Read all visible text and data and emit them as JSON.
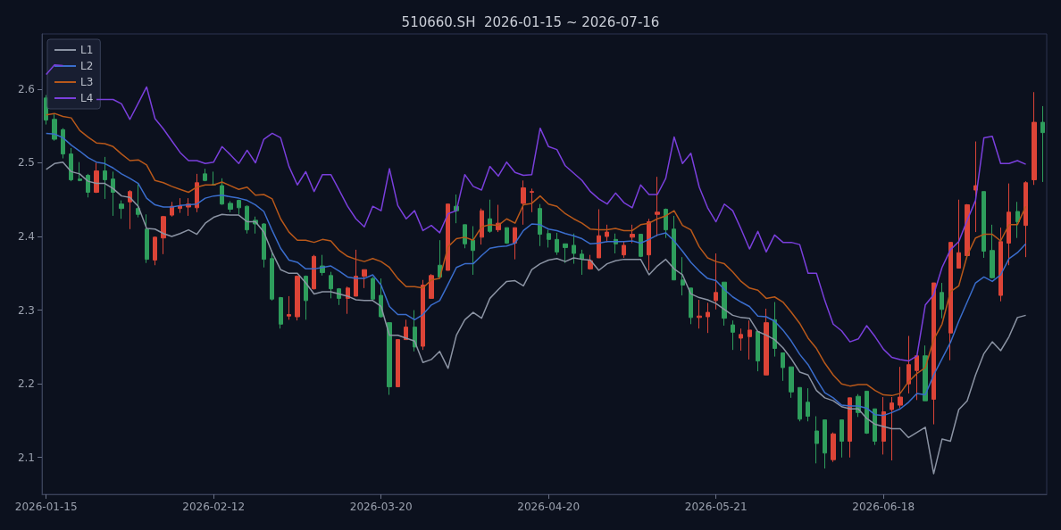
{
  "chart_data": {
    "type": "candlestick",
    "title": "510660.SH  2026-01-15 ~ 2026-07-16",
    "categories": [
      "2026-01-15",
      null,
      null,
      null,
      null,
      null,
      null,
      null,
      null,
      null,
      null,
      null,
      null,
      null,
      null,
      null,
      null,
      null,
      null,
      null,
      "2026-02-12",
      null,
      null,
      null,
      null,
      null,
      null,
      null,
      null,
      null,
      null,
      null,
      null,
      null,
      null,
      null,
      null,
      null,
      null,
      null,
      "2026-03-20",
      null,
      null,
      null,
      null,
      null,
      null,
      null,
      null,
      null,
      null,
      null,
      null,
      null,
      null,
      null,
      null,
      null,
      null,
      null,
      "2026-04-20",
      null,
      null,
      null,
      null,
      null,
      null,
      null,
      null,
      null,
      null,
      null,
      null,
      null,
      null,
      null,
      null,
      null,
      null,
      null,
      "2026-05-21",
      null,
      null,
      null,
      null,
      null,
      null,
      null,
      null,
      null,
      null,
      null,
      null,
      null,
      null,
      null,
      null,
      null,
      null,
      null,
      "2026-06-18",
      null,
      null,
      null,
      null,
      null,
      null,
      null,
      null,
      null,
      null,
      null,
      null,
      null,
      null,
      null,
      null,
      null,
      null,
      null
    ],
    "ohlc": [
      [
        2.588,
        2.592,
        2.552,
        2.558
      ],
      [
        2.559,
        2.567,
        2.53,
        2.532
      ],
      [
        2.545,
        2.547,
        2.506,
        2.512
      ],
      [
        2.512,
        2.52,
        2.475,
        2.477
      ],
      [
        2.478,
        2.501,
        2.475,
        2.476
      ],
      [
        2.483,
        2.485,
        2.453,
        2.46
      ],
      [
        2.46,
        2.5,
        2.459,
        2.489
      ],
      [
        2.489,
        2.508,
        2.451,
        2.477
      ],
      [
        2.478,
        2.488,
        2.428,
        2.46
      ],
      [
        2.444,
        2.449,
        2.424,
        2.438
      ],
      [
        2.447,
        2.463,
        2.41,
        2.461
      ],
      [
        2.438,
        2.471,
        2.426,
        2.43
      ],
      [
        2.41,
        2.43,
        2.364,
        2.369
      ],
      [
        2.368,
        2.4,
        2.361,
        2.399
      ],
      [
        2.398,
        2.428,
        2.376,
        2.427
      ],
      [
        2.429,
        2.447,
        2.427,
        2.441
      ],
      [
        2.438,
        2.452,
        2.432,
        2.442
      ],
      [
        2.44,
        2.452,
        2.428,
        2.444
      ],
      [
        2.439,
        2.485,
        2.433,
        2.473
      ],
      [
        2.485,
        2.492,
        2.475,
        2.476
      ],
      [
        2.471,
        2.488,
        2.469,
        2.47
      ],
      [
        2.469,
        2.479,
        2.443,
        2.444
      ],
      [
        2.445,
        2.448,
        2.433,
        2.437
      ],
      [
        2.449,
        2.45,
        2.43,
        2.439
      ],
      [
        2.441,
        2.442,
        2.404,
        2.409
      ],
      [
        2.422,
        2.427,
        2.404,
        2.417
      ],
      [
        2.417,
        2.418,
        2.358,
        2.369
      ],
      [
        2.37,
        2.381,
        2.313,
        2.315
      ],
      [
        2.317,
        2.318,
        2.275,
        2.281
      ],
      [
        2.292,
        2.319,
        2.287,
        2.294
      ],
      [
        2.291,
        2.347,
        2.286,
        2.346
      ],
      [
        2.346,
        2.347,
        2.287,
        2.313
      ],
      [
        2.329,
        2.375,
        2.328,
        2.373
      ],
      [
        2.36,
        2.375,
        2.347,
        2.351
      ],
      [
        2.347,
        2.352,
        2.316,
        2.329
      ],
      [
        2.329,
        2.33,
        2.307,
        2.316
      ],
      [
        2.316,
        2.332,
        2.295,
        2.33
      ],
      [
        2.319,
        2.382,
        2.319,
        2.346
      ],
      [
        2.346,
        2.355,
        2.33,
        2.355
      ],
      [
        2.343,
        2.345,
        2.313,
        2.315
      ],
      [
        2.32,
        2.343,
        2.29,
        2.291
      ],
      [
        2.283,
        2.283,
        2.185,
        2.196
      ],
      [
        2.196,
        2.26,
        2.196,
        2.26
      ],
      [
        2.26,
        2.287,
        2.26,
        2.277
      ],
      [
        2.277,
        2.3,
        2.244,
        2.25
      ],
      [
        2.251,
        2.341,
        2.246,
        2.334
      ],
      [
        2.316,
        2.349,
        2.316,
        2.347
      ],
      [
        2.361,
        2.395,
        2.345,
        2.345
      ],
      [
        2.354,
        2.444,
        2.354,
        2.444
      ],
      [
        2.441,
        2.457,
        2.418,
        2.435
      ],
      [
        2.416,
        2.416,
        2.384,
        2.39
      ],
      [
        2.395,
        2.414,
        2.348,
        2.381
      ],
      [
        2.399,
        2.438,
        2.389,
        2.435
      ],
      [
        2.424,
        2.45,
        2.405,
        2.407
      ],
      [
        2.409,
        2.443,
        2.406,
        2.418
      ],
      [
        2.412,
        2.412,
        2.39,
        2.391
      ],
      [
        2.391,
        2.412,
        2.369,
        2.412
      ],
      [
        2.445,
        2.476,
        2.416,
        2.466
      ],
      [
        2.46,
        2.465,
        2.433,
        2.461
      ],
      [
        2.438,
        2.444,
        2.387,
        2.403
      ],
      [
        2.404,
        2.409,
        2.385,
        2.396
      ],
      [
        2.396,
        2.405,
        2.375,
        2.379
      ],
      [
        2.39,
        2.39,
        2.364,
        2.385
      ],
      [
        2.388,
        2.404,
        2.363,
        2.377
      ],
      [
        2.376,
        2.382,
        2.348,
        2.369
      ],
      [
        2.356,
        2.375,
        2.355,
        2.367
      ],
      [
        2.371,
        2.437,
        2.371,
        2.401
      ],
      [
        2.4,
        2.416,
        2.392,
        2.406
      ],
      [
        2.396,
        2.404,
        2.377,
        2.39
      ],
      [
        2.375,
        2.393,
        2.371,
        2.388
      ],
      [
        2.399,
        2.416,
        2.391,
        2.403
      ],
      [
        2.403,
        2.403,
        2.372,
        2.373
      ],
      [
        2.375,
        2.424,
        2.354,
        2.42
      ],
      [
        2.43,
        2.481,
        2.4,
        2.433
      ],
      [
        2.437,
        2.438,
        2.398,
        2.409
      ],
      [
        2.41,
        2.428,
        2.341,
        2.341
      ],
      [
        2.341,
        2.372,
        2.32,
        2.334
      ],
      [
        2.33,
        2.33,
        2.281,
        2.29
      ],
      [
        2.29,
        2.314,
        2.275,
        2.292
      ],
      [
        2.291,
        2.31,
        2.269,
        2.297
      ],
      [
        2.313,
        2.377,
        2.301,
        2.324
      ],
      [
        2.338,
        2.338,
        2.279,
        2.289
      ],
      [
        2.28,
        2.286,
        2.246,
        2.27
      ],
      [
        2.262,
        2.275,
        2.245,
        2.267
      ],
      [
        2.264,
        2.286,
        2.233,
        2.273
      ],
      [
        2.271,
        2.271,
        2.217,
        2.231
      ],
      [
        2.212,
        2.302,
        2.212,
        2.283
      ],
      [
        2.287,
        2.311,
        2.237,
        2.248
      ],
      [
        2.242,
        2.242,
        2.204,
        2.222
      ],
      [
        2.223,
        2.223,
        2.181,
        2.189
      ],
      [
        2.195,
        2.195,
        2.149,
        2.152
      ],
      [
        2.175,
        2.194,
        2.149,
        2.156
      ],
      [
        2.136,
        2.156,
        2.092,
        2.119
      ],
      [
        2.151,
        2.151,
        2.085,
        2.106
      ],
      [
        2.097,
        2.134,
        2.094,
        2.132
      ],
      [
        2.151,
        2.151,
        2.1,
        2.122
      ],
      [
        2.122,
        2.181,
        2.1,
        2.181
      ],
      [
        2.183,
        2.186,
        2.155,
        2.161
      ],
      [
        2.19,
        2.19,
        2.132,
        2.133
      ],
      [
        2.166,
        2.166,
        2.117,
        2.122
      ],
      [
        2.122,
        2.182,
        2.104,
        2.162
      ],
      [
        2.165,
        2.182,
        2.096,
        2.174
      ],
      [
        2.171,
        2.223,
        2.167,
        2.182
      ],
      [
        2.2,
        2.265,
        2.187,
        2.226
      ],
      [
        2.218,
        2.238,
        2.178,
        2.238
      ],
      [
        2.238,
        2.252,
        2.177,
        2.177
      ],
      [
        2.179,
        2.337,
        2.145,
        2.337
      ],
      [
        2.324,
        2.337,
        2.289,
        2.301
      ],
      [
        2.269,
        2.392,
        2.232,
        2.392
      ],
      [
        2.357,
        2.45,
        2.357,
        2.378
      ],
      [
        2.374,
        2.444,
        2.374,
        2.443
      ],
      [
        2.463,
        2.529,
        2.406,
        2.469
      ],
      [
        2.461,
        2.461,
        2.371,
        2.38
      ],
      [
        2.381,
        2.416,
        2.343,
        2.344
      ],
      [
        2.32,
        2.412,
        2.312,
        2.393
      ],
      [
        2.391,
        2.472,
        2.361,
        2.433
      ],
      [
        2.434,
        2.447,
        2.398,
        2.42
      ],
      [
        2.415,
        2.475,
        2.372,
        2.473
      ],
      [
        2.477,
        2.596,
        2.47,
        2.555
      ],
      [
        2.555,
        2.577,
        2.474,
        2.541
      ]
    ],
    "colors": [
      "#2e9d5c",
      "#2e9d5c",
      "#2e9d5c",
      "#2e9d5c",
      "#2e9d5c",
      "#2e9d5c",
      "#dc4437",
      "#2e9d5c",
      "#2e9d5c",
      "#2e9d5c",
      "#dc4437",
      "#2e9d5c",
      "#2e9d5c",
      "#dc4437",
      "#dc4437",
      "#dc4437",
      "#dc4437",
      "#dc4437",
      "#dc4437",
      "#2e9d5c",
      "#2e9d5c",
      "#2e9d5c",
      "#2e9d5c",
      "#2e9d5c",
      "#2e9d5c",
      "#2e9d5c",
      "#2e9d5c",
      "#2e9d5c",
      "#2e9d5c",
      "#dc4437",
      "#dc4437",
      "#2e9d5c",
      "#dc4437",
      "#2e9d5c",
      "#2e9d5c",
      "#2e9d5c",
      "#dc4437",
      "#dc4437",
      "#dc4437",
      "#2e9d5c",
      "#2e9d5c",
      "#2e9d5c",
      "#dc4437",
      "#dc4437",
      "#2e9d5c",
      "#dc4437",
      "#dc4437",
      "#2e9d5c",
      "#dc4437",
      "#2e9d5c",
      "#2e9d5c",
      "#2e9d5c",
      "#dc4437",
      "#2e9d5c",
      "#dc4437",
      "#2e9d5c",
      "#dc4437",
      "#dc4437",
      "#dc4437",
      "#2e9d5c",
      "#2e9d5c",
      "#2e9d5c",
      "#2e9d5c",
      "#2e9d5c",
      "#2e9d5c",
      "#dc4437",
      "#dc4437",
      "#dc4437",
      "#2e9d5c",
      "#dc4437",
      "#dc4437",
      "#2e9d5c",
      "#dc4437",
      "#dc4437",
      "#2e9d5c",
      "#2e9d5c",
      "#2e9d5c",
      "#2e9d5c",
      "#dc4437",
      "#dc4437",
      "#dc4437",
      "#2e9d5c",
      "#2e9d5c",
      "#dc4437",
      "#dc4437",
      "#2e9d5c",
      "#dc4437",
      "#2e9d5c",
      "#2e9d5c",
      "#2e9d5c",
      "#2e9d5c",
      "#2e9d5c",
      "#2e9d5c",
      "#2e9d5c",
      "#dc4437",
      "#2e9d5c",
      "#dc4437",
      "#2e9d5c",
      "#2e9d5c",
      "#2e9d5c",
      "#dc4437",
      "#dc4437",
      "#dc4437",
      "#dc4437",
      "#dc4437",
      "#2e9d5c",
      "#dc4437",
      "#2e9d5c",
      "#dc4437",
      "#dc4437",
      "#dc4437",
      "#dc4437",
      "#2e9d5c",
      "#2e9d5c",
      "#dc4437",
      "#dc4437",
      "#2e9d5c",
      "#dc4437",
      "#dc4437",
      "#2e9d5c"
    ],
    "series": [
      {
        "name": "L1",
        "type": "line",
        "color": "#8b93a3",
        "values": [
          2.491,
          2.499,
          2.501,
          2.488,
          2.485,
          2.475,
          2.472,
          2.472,
          2.465,
          2.455,
          2.453,
          2.441,
          2.411,
          2.41,
          2.404,
          2.4,
          2.404,
          2.409,
          2.403,
          2.418,
          2.426,
          2.43,
          2.429,
          2.429,
          2.42,
          2.42,
          2.406,
          2.378,
          2.355,
          2.35,
          2.35,
          2.337,
          2.322,
          2.325,
          2.325,
          2.322,
          2.319,
          2.314,
          2.313,
          2.313,
          2.305,
          2.266,
          2.266,
          2.262,
          2.258,
          2.229,
          2.233,
          2.244,
          2.221,
          2.266,
          2.287,
          2.297,
          2.289,
          2.316,
          2.328,
          2.339,
          2.34,
          2.333,
          2.355,
          2.363,
          2.368,
          2.37,
          2.366,
          2.371,
          2.369,
          2.368,
          2.354,
          2.363,
          2.367,
          2.369,
          2.369,
          2.369,
          2.348,
          2.36,
          2.369,
          2.356,
          2.348,
          2.322,
          2.317,
          2.314,
          2.309,
          2.301,
          2.293,
          2.29,
          2.289,
          2.271,
          2.266,
          2.26,
          2.249,
          2.234,
          2.216,
          2.212,
          2.191,
          2.181,
          2.177,
          2.169,
          2.166,
          2.166,
          2.153,
          2.145,
          2.142,
          2.139,
          2.139,
          2.127,
          2.134,
          2.141,
          2.078,
          2.125,
          2.122,
          2.165,
          2.177,
          2.212,
          2.241,
          2.257,
          2.245,
          2.264,
          2.29,
          2.293,
          null,
          null
        ]
      },
      {
        "name": "L2",
        "type": "line",
        "color": "#3a6dcc",
        "values": [
          2.54,
          2.539,
          2.534,
          2.524,
          2.516,
          2.507,
          2.501,
          2.499,
          2.493,
          2.485,
          2.479,
          2.472,
          2.452,
          2.443,
          2.44,
          2.44,
          2.442,
          2.443,
          2.444,
          2.452,
          2.455,
          2.456,
          2.454,
          2.452,
          2.449,
          2.443,
          2.434,
          2.408,
          2.384,
          2.368,
          2.365,
          2.356,
          2.356,
          2.358,
          2.36,
          2.353,
          2.345,
          2.343,
          2.343,
          2.348,
          2.334,
          2.305,
          2.294,
          2.294,
          2.287,
          2.294,
          2.307,
          2.313,
          2.335,
          2.358,
          2.363,
          2.363,
          2.374,
          2.384,
          2.386,
          2.387,
          2.391,
          2.408,
          2.417,
          2.416,
          2.41,
          2.408,
          2.404,
          2.401,
          2.397,
          2.39,
          2.391,
          2.393,
          2.393,
          2.393,
          2.394,
          2.391,
          2.396,
          2.402,
          2.405,
          2.394,
          2.38,
          2.365,
          2.353,
          2.343,
          2.34,
          2.328,
          2.318,
          2.311,
          2.305,
          2.292,
          2.291,
          2.285,
          2.273,
          2.258,
          2.24,
          2.226,
          2.206,
          2.188,
          2.181,
          2.171,
          2.17,
          2.17,
          2.167,
          2.158,
          2.157,
          2.161,
          2.166,
          2.175,
          2.187,
          2.185,
          2.212,
          2.234,
          2.256,
          2.285,
          2.311,
          2.337,
          2.345,
          2.339,
          2.348,
          2.37,
          2.378,
          2.39,
          null,
          null
        ]
      },
      {
        "name": "L3",
        "type": "line",
        "color": "#b8581a",
        "values": [
          2.565,
          2.567,
          2.563,
          2.561,
          2.544,
          2.535,
          2.527,
          2.526,
          2.522,
          2.512,
          2.503,
          2.504,
          2.497,
          2.476,
          2.473,
          2.468,
          2.464,
          2.46,
          2.467,
          2.47,
          2.47,
          2.474,
          2.469,
          2.464,
          2.467,
          2.456,
          2.457,
          2.451,
          2.424,
          2.406,
          2.395,
          2.395,
          2.392,
          2.396,
          2.394,
          2.381,
          2.373,
          2.369,
          2.366,
          2.37,
          2.366,
          2.358,
          2.343,
          2.332,
          2.332,
          2.33,
          2.341,
          2.343,
          2.386,
          2.397,
          2.399,
          2.395,
          2.413,
          2.416,
          2.415,
          2.424,
          2.418,
          2.443,
          2.445,
          2.455,
          2.444,
          2.441,
          2.431,
          2.424,
          2.418,
          2.41,
          2.409,
          2.409,
          2.411,
          2.408,
          2.408,
          2.416,
          2.418,
          2.424,
          2.428,
          2.435,
          2.415,
          2.409,
          2.386,
          2.371,
          2.366,
          2.363,
          2.352,
          2.339,
          2.33,
          2.327,
          2.316,
          2.318,
          2.311,
          2.297,
          2.282,
          2.262,
          2.248,
          2.228,
          2.212,
          2.2,
          2.197,
          2.199,
          2.199,
          2.191,
          2.185,
          2.184,
          2.187,
          2.203,
          2.214,
          2.222,
          2.26,
          2.281,
          2.325,
          2.333,
          2.374,
          2.398,
          2.403,
          2.403,
          2.394,
          2.416,
          2.416,
          2.441,
          null,
          null
        ]
      },
      {
        "name": "L4",
        "type": "line",
        "color": "#7a3fdc",
        "values": [
          2.62,
          2.633,
          2.632,
          null,
          null,
          null,
          2.586,
          2.586,
          2.586,
          2.58,
          2.559,
          2.581,
          2.603,
          2.56,
          2.546,
          2.53,
          2.514,
          2.503,
          2.503,
          2.499,
          2.501,
          2.522,
          2.511,
          2.499,
          2.517,
          2.5,
          2.532,
          2.54,
          2.534,
          2.495,
          2.47,
          2.488,
          2.461,
          2.484,
          2.484,
          2.463,
          2.441,
          2.424,
          2.413,
          2.441,
          2.435,
          2.492,
          2.442,
          2.424,
          2.435,
          2.408,
          2.415,
          2.405,
          2.431,
          2.435,
          2.484,
          2.468,
          2.463,
          2.495,
          2.482,
          2.501,
          2.487,
          2.483,
          2.484,
          2.547,
          2.522,
          2.518,
          2.496,
          2.486,
          2.476,
          2.461,
          2.451,
          2.444,
          2.459,
          2.446,
          2.439,
          2.47,
          2.457,
          2.457,
          2.479,
          2.535,
          2.499,
          2.513,
          2.467,
          2.439,
          2.42,
          2.444,
          2.435,
          2.41,
          2.383,
          2.407,
          2.379,
          2.402,
          2.392,
          2.392,
          2.389,
          2.35,
          2.35,
          2.313,
          2.281,
          2.272,
          2.257,
          2.261,
          2.279,
          2.264,
          2.247,
          2.236,
          2.233,
          2.231,
          2.238,
          2.307,
          2.321,
          2.358,
          2.382,
          2.393,
          2.422,
          2.449,
          2.534,
          2.536,
          2.499,
          2.499,
          2.503,
          2.498,
          null,
          null
        ]
      }
    ],
    "ylim": [
      2.05,
      2.675
    ],
    "yticks": [
      2.1,
      2.2,
      2.3,
      2.4,
      2.5,
      2.6
    ],
    "legend": "top left",
    "marker": "none",
    "line_style": "solid"
  }
}
